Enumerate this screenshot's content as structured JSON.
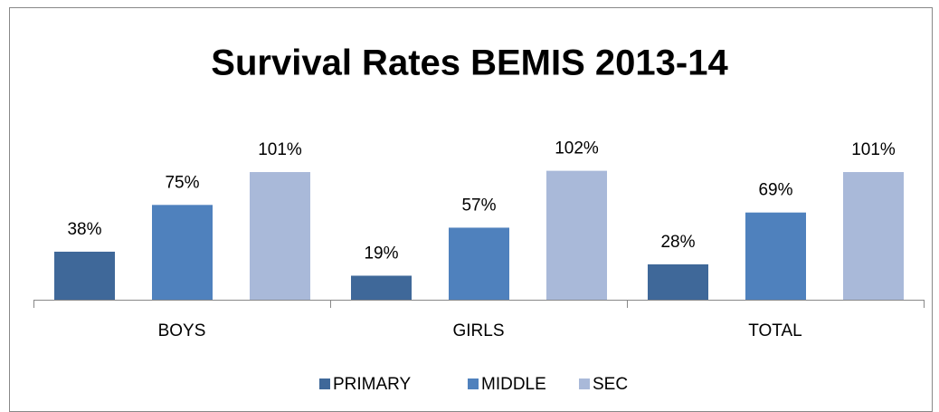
{
  "chart_data": {
    "type": "bar",
    "title": "Survival Rates BEMIS 2013-14",
    "categories": [
      "BOYS",
      "GIRLS",
      "TOTAL"
    ],
    "series": [
      {
        "name": "PRIMARY",
        "color": "#3f6899",
        "values": [
          38,
          19,
          28
        ],
        "value_labels": [
          "38%",
          "19%",
          "28%"
        ]
      },
      {
        "name": "MIDDLE",
        "color": "#4f81bd",
        "values": [
          75,
          57,
          69
        ],
        "value_labels": [
          "75%",
          "57%",
          "69%"
        ]
      },
      {
        "name": "SEC",
        "color": "#a9b9d9",
        "values": [
          101,
          102,
          101
        ],
        "value_labels": [
          "101%",
          "102%",
          "101%"
        ]
      }
    ],
    "ylim": [
      0,
      120
    ],
    "legend": "bottom"
  }
}
